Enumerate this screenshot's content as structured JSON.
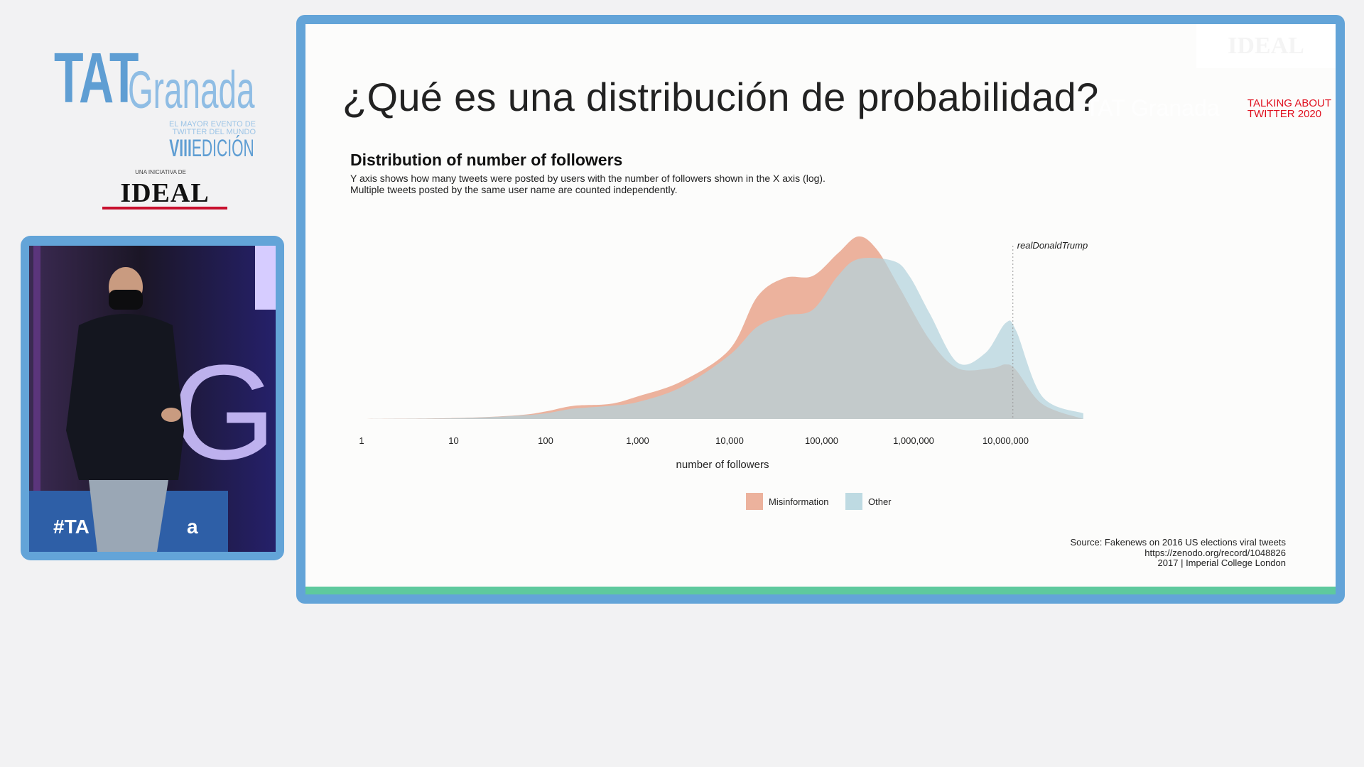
{
  "branding": {
    "tat": "TAT",
    "granada": "Granada",
    "tagline_1": "EL MAYOR EVENTO DE",
    "tagline_2": "TWITTER DEL MUNDO",
    "edition_roman": "VIII",
    "edition_word": "EDICIÓN",
    "initiative": "UNA INICIATIVA DE",
    "sponsor": "IDEAL"
  },
  "webcam": {
    "hashtag": "#TA",
    "hashtag_tail": "a"
  },
  "slide": {
    "title": "¿Qué es una distribución de probabilidad?",
    "talking_line1": "TALKING ABOUT",
    "talking_line2": "TWITTER 2020",
    "watermark": "IDEAL",
    "tat_watermark": "TAT Granada",
    "source_line1": "Source: Fakenews on 2016 US elections viral tweets",
    "source_line2": "https://zenodo.org/record/1048826",
    "source_line3": "2017 | Imperial College London"
  },
  "colors": {
    "frame": "#63a4d8",
    "misinformation": "#e9a48c",
    "other": "#b3d3dd",
    "accent_red": "#e0101f",
    "bottom_bar": "#5ec99d"
  },
  "chart_data": {
    "type": "area",
    "title": "Distribution of number of followers",
    "subtitle_line1": "Y axis shows how many tweets were posted by users with the number of followers shown in the X axis (log).",
    "subtitle_line2": "Multiple tweets posted by the same user name are counted independently.",
    "xlabel": "number of followers",
    "ylabel": "",
    "x_scale": "log10",
    "x_ticks": [
      "1",
      "10",
      "100",
      "1,000",
      "10,000",
      "100,000",
      "1,000,000",
      "10,000,000"
    ],
    "x_tick_values": [
      1,
      10,
      100,
      1000,
      10000,
      100000,
      1000000,
      10000000
    ],
    "xlim": [
      1,
      100000000
    ],
    "ylim": [
      0,
      1
    ],
    "grid": false,
    "legend_position": "bottom",
    "annotation": {
      "label": "realDonaldTrump",
      "x": 12000000
    },
    "series": [
      {
        "name": "Misinformation",
        "color": "#e9a48c",
        "points": [
          [
            1,
            0.0
          ],
          [
            10,
            0.005
          ],
          [
            50,
            0.02
          ],
          [
            100,
            0.04
          ],
          [
            200,
            0.07
          ],
          [
            500,
            0.08
          ],
          [
            1000,
            0.12
          ],
          [
            3000,
            0.2
          ],
          [
            10000,
            0.37
          ],
          [
            20000,
            0.65
          ],
          [
            40000,
            0.75
          ],
          [
            80000,
            0.76
          ],
          [
            150000,
            0.88
          ],
          [
            250000,
            0.97
          ],
          [
            400000,
            0.9
          ],
          [
            700000,
            0.7
          ],
          [
            1500000,
            0.42
          ],
          [
            3000000,
            0.27
          ],
          [
            7000000,
            0.27
          ],
          [
            10000000,
            0.29
          ],
          [
            13000000,
            0.26
          ],
          [
            25000000,
            0.08
          ],
          [
            70000000,
            0.0
          ]
        ]
      },
      {
        "name": "Other",
        "color": "#b3d3dd",
        "points": [
          [
            1,
            0.0
          ],
          [
            10,
            0.004
          ],
          [
            50,
            0.018
          ],
          [
            100,
            0.03
          ],
          [
            200,
            0.055
          ],
          [
            500,
            0.07
          ],
          [
            1000,
            0.09
          ],
          [
            3000,
            0.17
          ],
          [
            10000,
            0.34
          ],
          [
            20000,
            0.49
          ],
          [
            40000,
            0.55
          ],
          [
            80000,
            0.58
          ],
          [
            150000,
            0.76
          ],
          [
            250000,
            0.85
          ],
          [
            600000,
            0.84
          ],
          [
            900000,
            0.76
          ],
          [
            1500000,
            0.56
          ],
          [
            3000000,
            0.3
          ],
          [
            6000000,
            0.35
          ],
          [
            10000000,
            0.51
          ],
          [
            13000000,
            0.47
          ],
          [
            25000000,
            0.12
          ],
          [
            70000000,
            0.03
          ]
        ]
      }
    ]
  }
}
